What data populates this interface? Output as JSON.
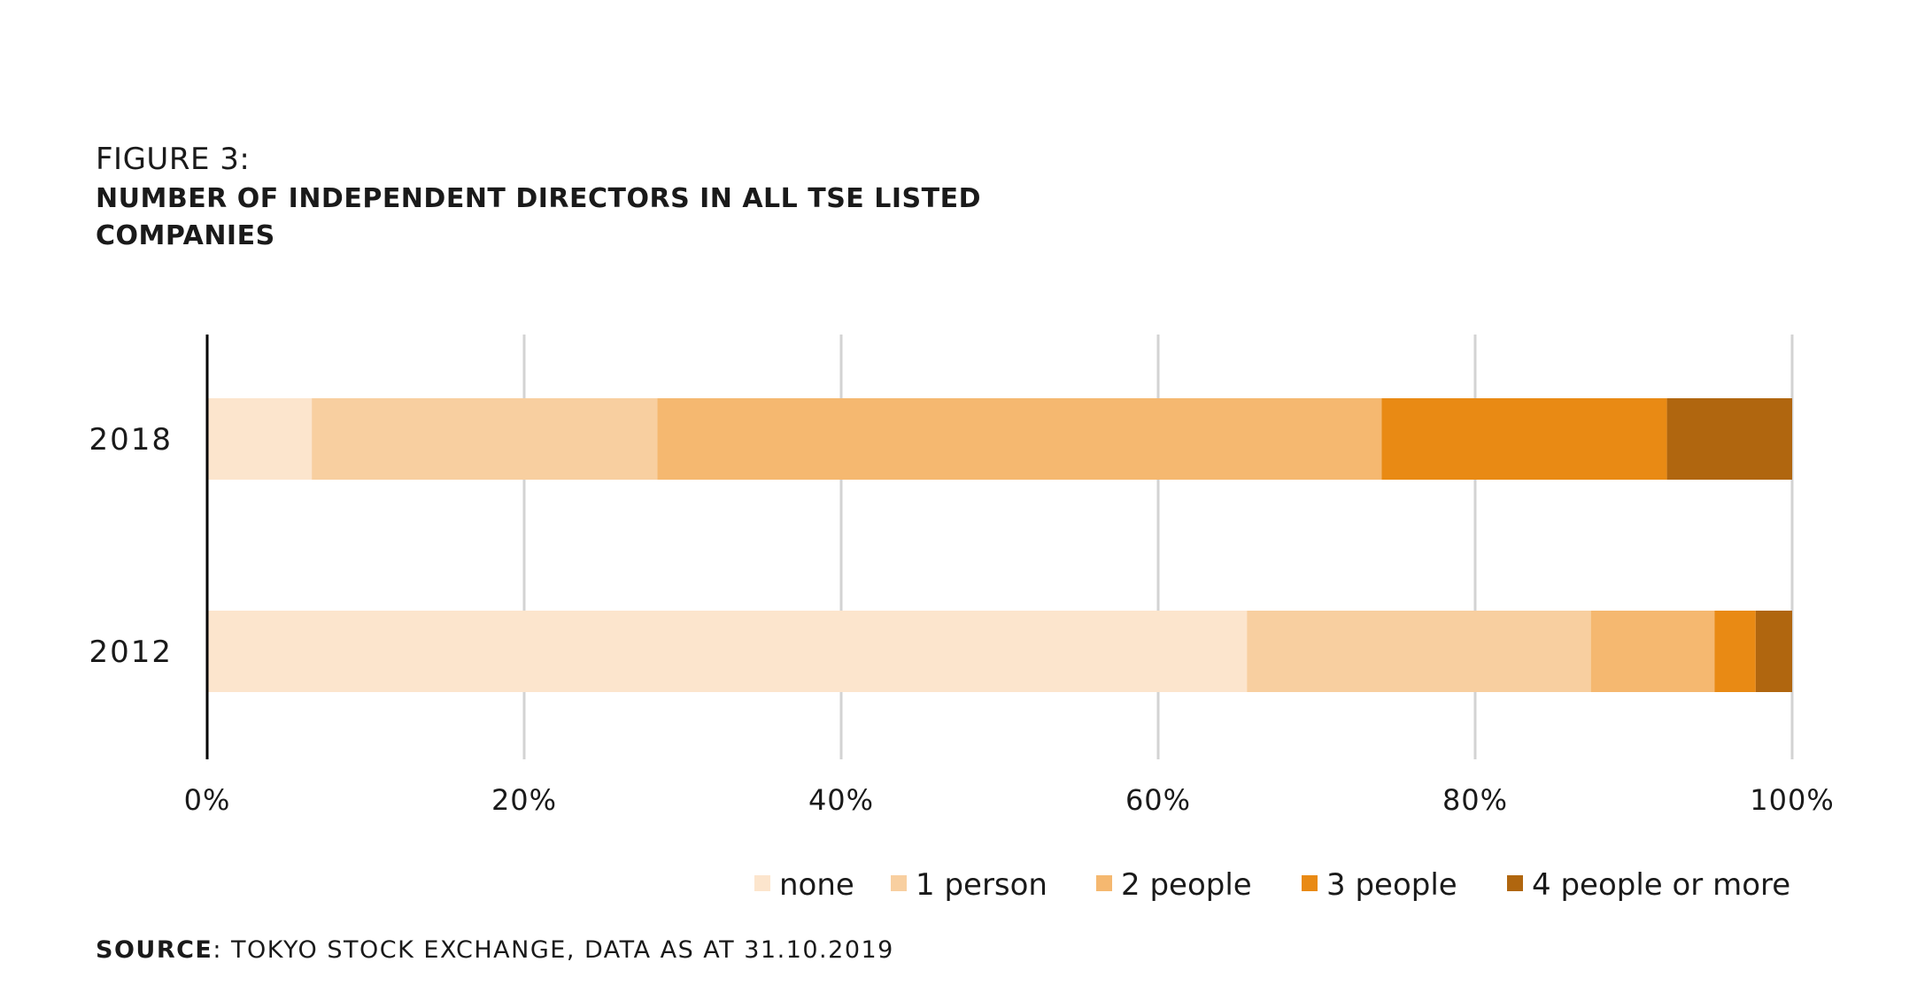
{
  "figure_label": "FIGURE 3:",
  "title": "NUMBER OF INDEPENDENT DIRECTORS IN ALL TSE LISTED COMPANIES",
  "source": {
    "label": "SOURCE",
    "text": ": TOKYO STOCK EXCHANGE, DATA AS AT 31.10.2019"
  },
  "chart_data": {
    "type": "bar",
    "orientation": "horizontal",
    "stacked": true,
    "percent": true,
    "categories": [
      "2018",
      "2012"
    ],
    "series": [
      {
        "name": "none",
        "color": "#FCE5CD",
        "values": [
          6.6,
          65.6
        ]
      },
      {
        "name": "1 person",
        "color": "#F8CFA0",
        "values": [
          21.8,
          21.7
        ]
      },
      {
        "name": "2 people",
        "color": "#F5B870",
        "values": [
          45.7,
          7.8
        ]
      },
      {
        "name": "3 people",
        "color": "#E98A14",
        "values": [
          18.0,
          2.6
        ]
      },
      {
        "name": "4 people or more",
        "color": "#B0660F",
        "values": [
          7.9,
          2.3
        ]
      }
    ],
    "xlim": [
      0,
      100
    ],
    "xticks": [
      "0%",
      "20%",
      "40%",
      "60%",
      "80%",
      "100%"
    ],
    "grid": true,
    "legend_position": "bottom-right"
  }
}
